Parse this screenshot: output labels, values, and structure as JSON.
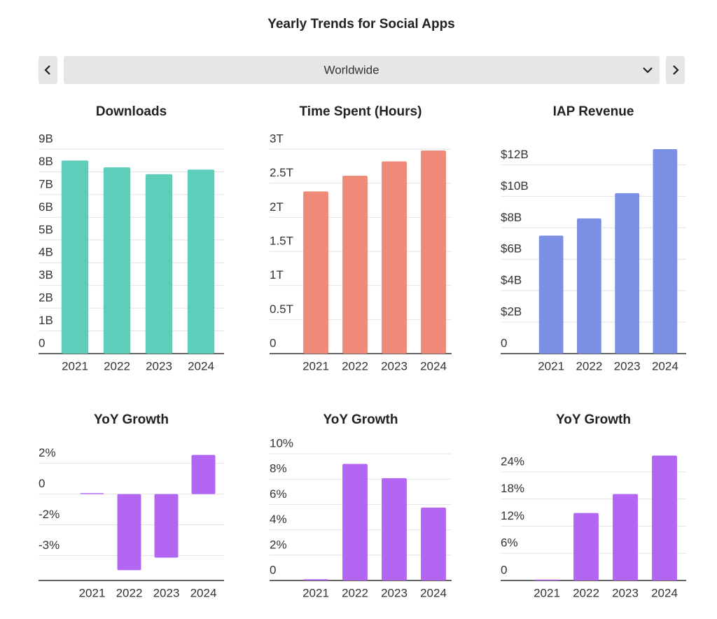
{
  "header": {
    "title": "Yearly Trends for Social Apps",
    "region": "Worldwide"
  },
  "chart_data": [
    {
      "type": "bar",
      "title": "Downloads",
      "categories": [
        "2021",
        "2022",
        "2023",
        "2024"
      ],
      "values": [
        8.5,
        8.2,
        7.9,
        8.1
      ],
      "color": "#5ecdb9",
      "ylim": [
        0,
        9
      ],
      "yticks": [
        {
          "value": 0,
          "label": "0"
        },
        {
          "value": 1,
          "label": "1B"
        },
        {
          "value": 2,
          "label": "2B"
        },
        {
          "value": 3,
          "label": "3B"
        },
        {
          "value": 4,
          "label": "4B"
        },
        {
          "value": 5,
          "label": "5B"
        },
        {
          "value": 6,
          "label": "6B"
        },
        {
          "value": 7,
          "label": "7B"
        },
        {
          "value": 8,
          "label": "8B"
        },
        {
          "value": 9,
          "label": "9B"
        }
      ],
      "grid": true
    },
    {
      "type": "bar",
      "title": "Time Spent (Hours)",
      "categories": [
        "2021",
        "2022",
        "2023",
        "2024"
      ],
      "values": [
        2.38,
        2.61,
        2.82,
        2.98
      ],
      "color": "#f08a78",
      "ylim": [
        0,
        3
      ],
      "yticks": [
        {
          "value": 0,
          "label": "0"
        },
        {
          "value": 0.5,
          "label": "0.5T"
        },
        {
          "value": 1,
          "label": "1T"
        },
        {
          "value": 1.5,
          "label": "1.5T"
        },
        {
          "value": 2,
          "label": "2T"
        },
        {
          "value": 2.5,
          "label": "2.5T"
        },
        {
          "value": 3,
          "label": "3T"
        }
      ],
      "grid": true
    },
    {
      "type": "bar",
      "title": "IAP Revenue",
      "categories": [
        "2021",
        "2022",
        "2023",
        "2024"
      ],
      "values": [
        7.5,
        8.6,
        10.2,
        13.0
      ],
      "color": "#7b8fe5",
      "ylim": [
        0,
        13
      ],
      "yticks": [
        {
          "value": 0,
          "label": "0"
        },
        {
          "value": 2,
          "label": "$2B"
        },
        {
          "value": 4,
          "label": "$4B"
        },
        {
          "value": 6,
          "label": "$6B"
        },
        {
          "value": 8,
          "label": "$8B"
        },
        {
          "value": 10,
          "label": "$10B"
        },
        {
          "value": 12,
          "label": "$12B"
        }
      ],
      "grid": true
    },
    {
      "type": "bar",
      "title": "YoY Growth",
      "categories": [
        "2021",
        "2022",
        "2023",
        "2024"
      ],
      "values": [
        0.05,
        -3.96,
        -3.31,
        2.04
      ],
      "color": "#b366f2",
      "ylim": [
        -4.5,
        2.5
      ],
      "yticks": [
        {
          "value": -3.2,
          "label": "-3%"
        },
        {
          "value": -1.6,
          "label": "-2%"
        },
        0,
        {
          "value": 1.6,
          "label": "2%"
        }
      ],
      "grid": true
    },
    {
      "type": "bar",
      "title": "YoY Growth",
      "categories": [
        "2021",
        "2022",
        "2023",
        "2024"
      ],
      "values": [
        0.1,
        9.2,
        8.07,
        5.75
      ],
      "color": "#b366f2",
      "ylim": [
        0,
        10
      ],
      "yticks": [
        0,
        {
          "value": 2,
          "label": "2%"
        },
        {
          "value": 4,
          "label": "4%"
        },
        {
          "value": 6,
          "label": "6%"
        },
        {
          "value": 8,
          "label": "8%"
        },
        {
          "value": 10,
          "label": "10%"
        }
      ],
      "grid": true
    },
    {
      "type": "bar",
      "title": "YoY Growth",
      "categories": [
        "2021",
        "2022",
        "2023",
        "2024"
      ],
      "values": [
        0.2,
        14.9,
        19.1,
        27.6
      ],
      "color": "#b366f2",
      "ylim": [
        0,
        28
      ],
      "yticks": [
        0,
        {
          "value": 6,
          "label": "6%"
        },
        {
          "value": 12,
          "label": "12%"
        },
        {
          "value": 18,
          "label": "18%"
        },
        {
          "value": 24,
          "label": "24%"
        }
      ],
      "grid": true
    }
  ]
}
